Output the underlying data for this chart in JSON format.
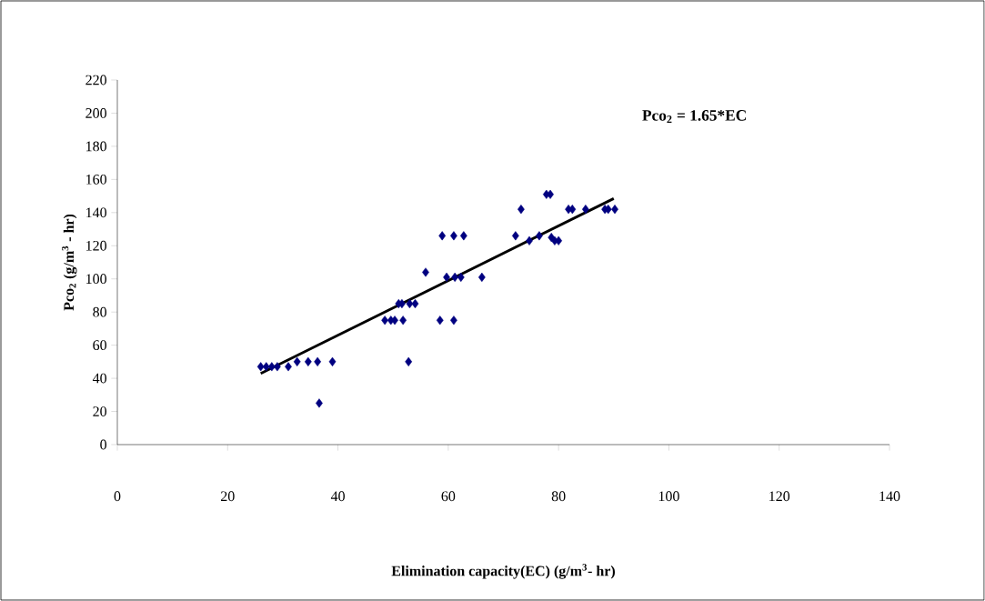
{
  "chart_data": {
    "type": "scatter",
    "xlabel": "Elimination capacity(EC)  (g/m$^{3}$- hr)",
    "ylabel": "Pco$_{2}$ (g/m$^{3}$ - hr)",
    "annotations": [
      "Pco$_{2}$ = 1.65*EC"
    ],
    "xlim": [
      0,
      140
    ],
    "ylim": [
      0,
      220
    ],
    "xticks": [
      0,
      20,
      40,
      60,
      80,
      100,
      120,
      140
    ],
    "yticks": [
      0,
      20,
      40,
      60,
      80,
      100,
      120,
      140,
      160,
      180,
      200,
      220
    ],
    "grid": false,
    "marker": "diamond",
    "series": [
      {
        "color": "#000080",
        "x": [
          26,
          27,
          28,
          29,
          31,
          32.6,
          34.6,
          36.3,
          39,
          36.6,
          48.5,
          49.6,
          50.3,
          51.8,
          58.5,
          61,
          51,
          51.6,
          53,
          54,
          52.8,
          55.9,
          58.9,
          61,
          62.8,
          59.7,
          61.2,
          62.3,
          66.1,
          72.2,
          73.2,
          74.7,
          76.5,
          77.8,
          78.5,
          78.7,
          79.3,
          80,
          81.8,
          82.5,
          84.9,
          88.4,
          89,
          90.2
        ],
        "values": [
          47,
          47,
          47,
          47,
          47,
          50,
          50,
          50,
          50,
          25,
          75,
          75,
          75,
          75,
          75,
          75,
          85,
          85,
          85,
          85,
          50,
          104,
          126,
          126,
          126,
          101,
          101,
          101,
          101,
          126,
          142,
          123,
          126,
          151,
          151,
          125,
          123,
          123,
          142,
          142,
          142,
          142,
          142,
          142
        ]
      },
      {
        "type": "line",
        "color": "#000000",
        "line_style": "solid",
        "marker": "none",
        "x": [
          26,
          90
        ],
        "values": [
          42.9,
          148.5
        ]
      }
    ]
  }
}
